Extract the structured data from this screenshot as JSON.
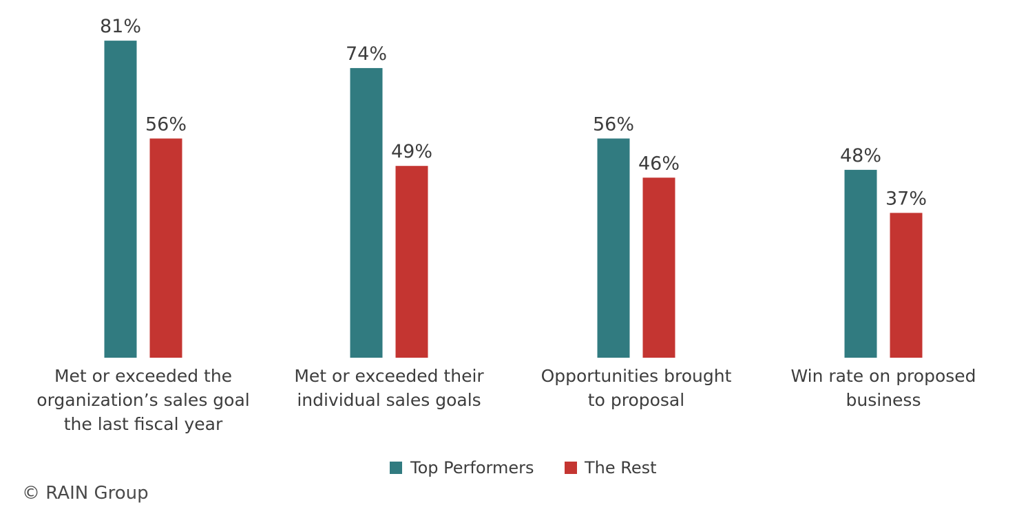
{
  "chart_data": {
    "type": "bar",
    "categories": [
      [
        "Met or exceeded the",
        "organization’s sales goal",
        "the last fiscal year"
      ],
      [
        "Met or exceeded their",
        "individual sales goals"
      ],
      [
        "Opportunities brought",
        "to proposal"
      ],
      [
        "Win rate on proposed",
        "business"
      ]
    ],
    "series": [
      {
        "name": "Top Performers",
        "color": "#317b80",
        "values": [
          81,
          74,
          56,
          48
        ],
        "labels": [
          "81%",
          "74%",
          "56%",
          "48%"
        ]
      },
      {
        "name": "The Rest",
        "color": "#c43531",
        "values": [
          56,
          49,
          46,
          37
        ],
        "labels": [
          "56%",
          "49%",
          "46%",
          "37%"
        ]
      }
    ],
    "ylim": [
      0,
      100
    ],
    "grid": false,
    "legend_position": "bottom"
  },
  "footer": {
    "copyright": "© RAIN Group"
  }
}
